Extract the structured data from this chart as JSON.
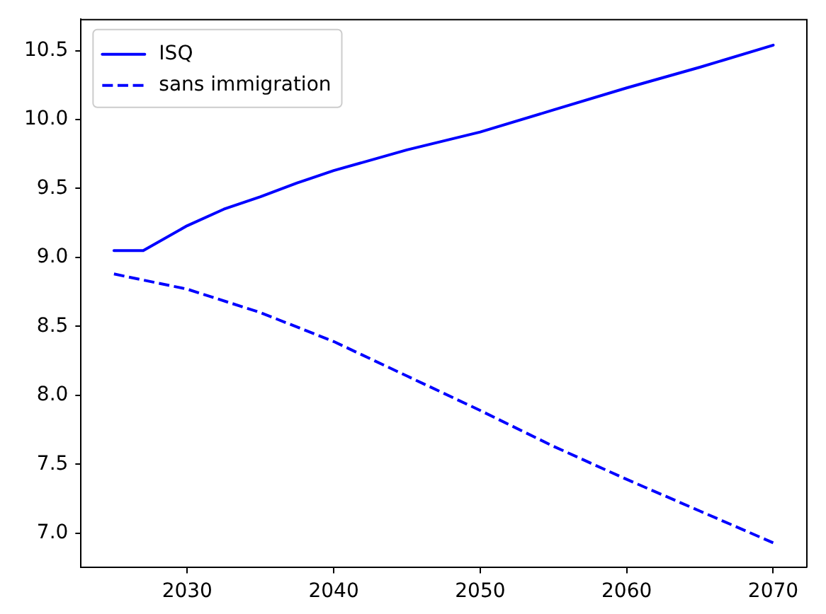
{
  "chart_data": {
    "type": "line",
    "series": [
      {
        "name": "ISQ",
        "color": "#0000ff",
        "line_style": "solid",
        "x": [
          2025,
          2027,
          2030,
          2032.5,
          2035,
          2037.5,
          2040,
          2045,
          2050,
          2055,
          2060,
          2065,
          2070
        ],
        "values": [
          9.05,
          9.05,
          9.23,
          9.35,
          9.44,
          9.54,
          9.63,
          9.78,
          9.91,
          10.07,
          10.23,
          10.38,
          10.54
        ]
      },
      {
        "name": "sans immigration",
        "color": "#0000ff",
        "line_style": "dashed",
        "x": [
          2025,
          2030,
          2035,
          2040,
          2045,
          2050,
          2055,
          2060,
          2065,
          2070
        ],
        "values": [
          8.88,
          8.77,
          8.6,
          8.39,
          8.14,
          7.89,
          7.63,
          7.39,
          7.16,
          6.93
        ]
      }
    ],
    "xlim": [
      2022.75,
      2072.25
    ],
    "xticks": [
      2030,
      2040,
      2050,
      2060,
      2070
    ],
    "ylim": [
      6.75,
      10.73
    ],
    "yticks": [
      {
        "value": 7,
        "label": "7.0"
      },
      7.5,
      {
        "value": 8,
        "label": "8.0"
      },
      8.5,
      {
        "value": 9,
        "label": "9.0"
      },
      9.5,
      {
        "value": 10,
        "label": "10.0"
      },
      10.5
    ],
    "grid": false,
    "legend": "top left"
  }
}
